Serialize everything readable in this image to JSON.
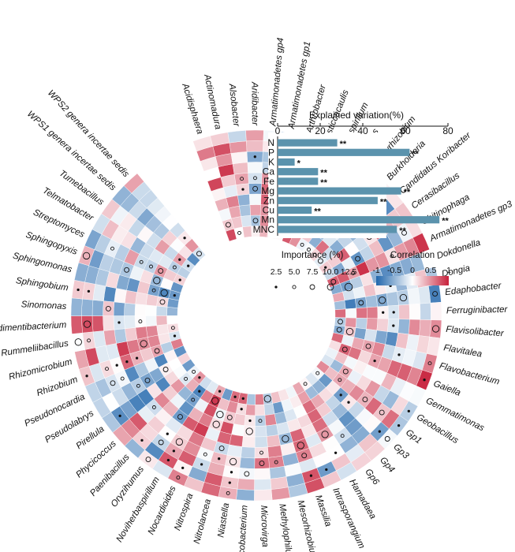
{
  "chart_data": [
    {
      "type": "bar",
      "orientation": "horizontal",
      "title": "Explained variation(%)",
      "categories": [
        "N",
        "P",
        "K",
        "Ca",
        "Fe",
        "Mg",
        "Zn",
        "Cu",
        "Mn",
        "MNC"
      ],
      "values": [
        28,
        62,
        8,
        19,
        19,
        58,
        47,
        16,
        76,
        56
      ],
      "significance": [
        "**",
        "**",
        "*",
        "**",
        "**",
        "**",
        "**",
        "**",
        "**",
        "**"
      ],
      "xlim": [
        0,
        80
      ],
      "xticks": [
        0,
        20,
        40,
        60,
        80
      ],
      "bar_color": "#5b93ad"
    },
    {
      "type": "heatmap",
      "layout": "circular",
      "rings": [
        "N",
        "P",
        "K",
        "Ca",
        "Fe",
        "Mg",
        "Zn",
        "Cu",
        "Mn",
        "MNC"
      ],
      "genera": [
        "Acidisphaera",
        "Actinomadura",
        "Alsobacter",
        "Aridibacter",
        "Armatimonadetes gp4",
        "Armatimonadetes gp1",
        "Arthrobacter",
        "Asticcacaulis",
        "Azospirillum",
        "Bacillus",
        "Bradyrhizobium",
        "Burkholderia",
        "Candidatus Koribacter",
        "Cerasibacillus",
        "Chitinophaga",
        "Armatimonadetes gp3",
        "Dokdonella",
        "Dongia",
        "Edaphobacter",
        "Ferruginibacter",
        "Flavisolibacter",
        "Flavitalea",
        "Flavobacterium",
        "Gaiella",
        "Gemmatimonas",
        "Geobacillus",
        "Gp1",
        "Gp3",
        "Gp4",
        "Gp6",
        "Hamadaea",
        "Intrasporangium",
        "Massilia",
        "Mesorhizobium",
        "Methylophilus",
        "Microvirga",
        "Mycobacterium",
        "Niastella",
        "Nitrolancea",
        "Nitrospira",
        "Nocardioides",
        "Noviherbaspirillum",
        "Oryzihumus",
        "Paenibacillus",
        "Phycicoccus",
        "Pirellula",
        "Pseudolabrys",
        "Pseudonocardia",
        "Rhizobium",
        "Rhizomicrobium",
        "Rummeliibacillus",
        "Sedimentibacterium",
        "Sinomonas",
        "Sphingobium",
        "Sphingomonas",
        "Sphingopyxis",
        "Streptomyces",
        "Telmatobacter",
        "Tumebacillus",
        "WPS1 genera incertae sedis",
        "WPS2 genera incertae sedis"
      ],
      "correlation_legend": {
        "title": "Correlation",
        "ticks": [
          "-1",
          "-0.5",
          "0",
          "0.5",
          "1"
        ],
        "range": [
          -1,
          1
        ],
        "colors": [
          "#2166ac",
          "#ffffff",
          "#c7203a"
        ]
      },
      "importance_legend": {
        "title": "Importance (%)",
        "ticks": [
          "2.5",
          "5.0",
          "7.5",
          "10.0",
          "12.5"
        ],
        "values": [
          2.5,
          5.0,
          7.5,
          10.0,
          12.5
        ]
      }
    }
  ]
}
